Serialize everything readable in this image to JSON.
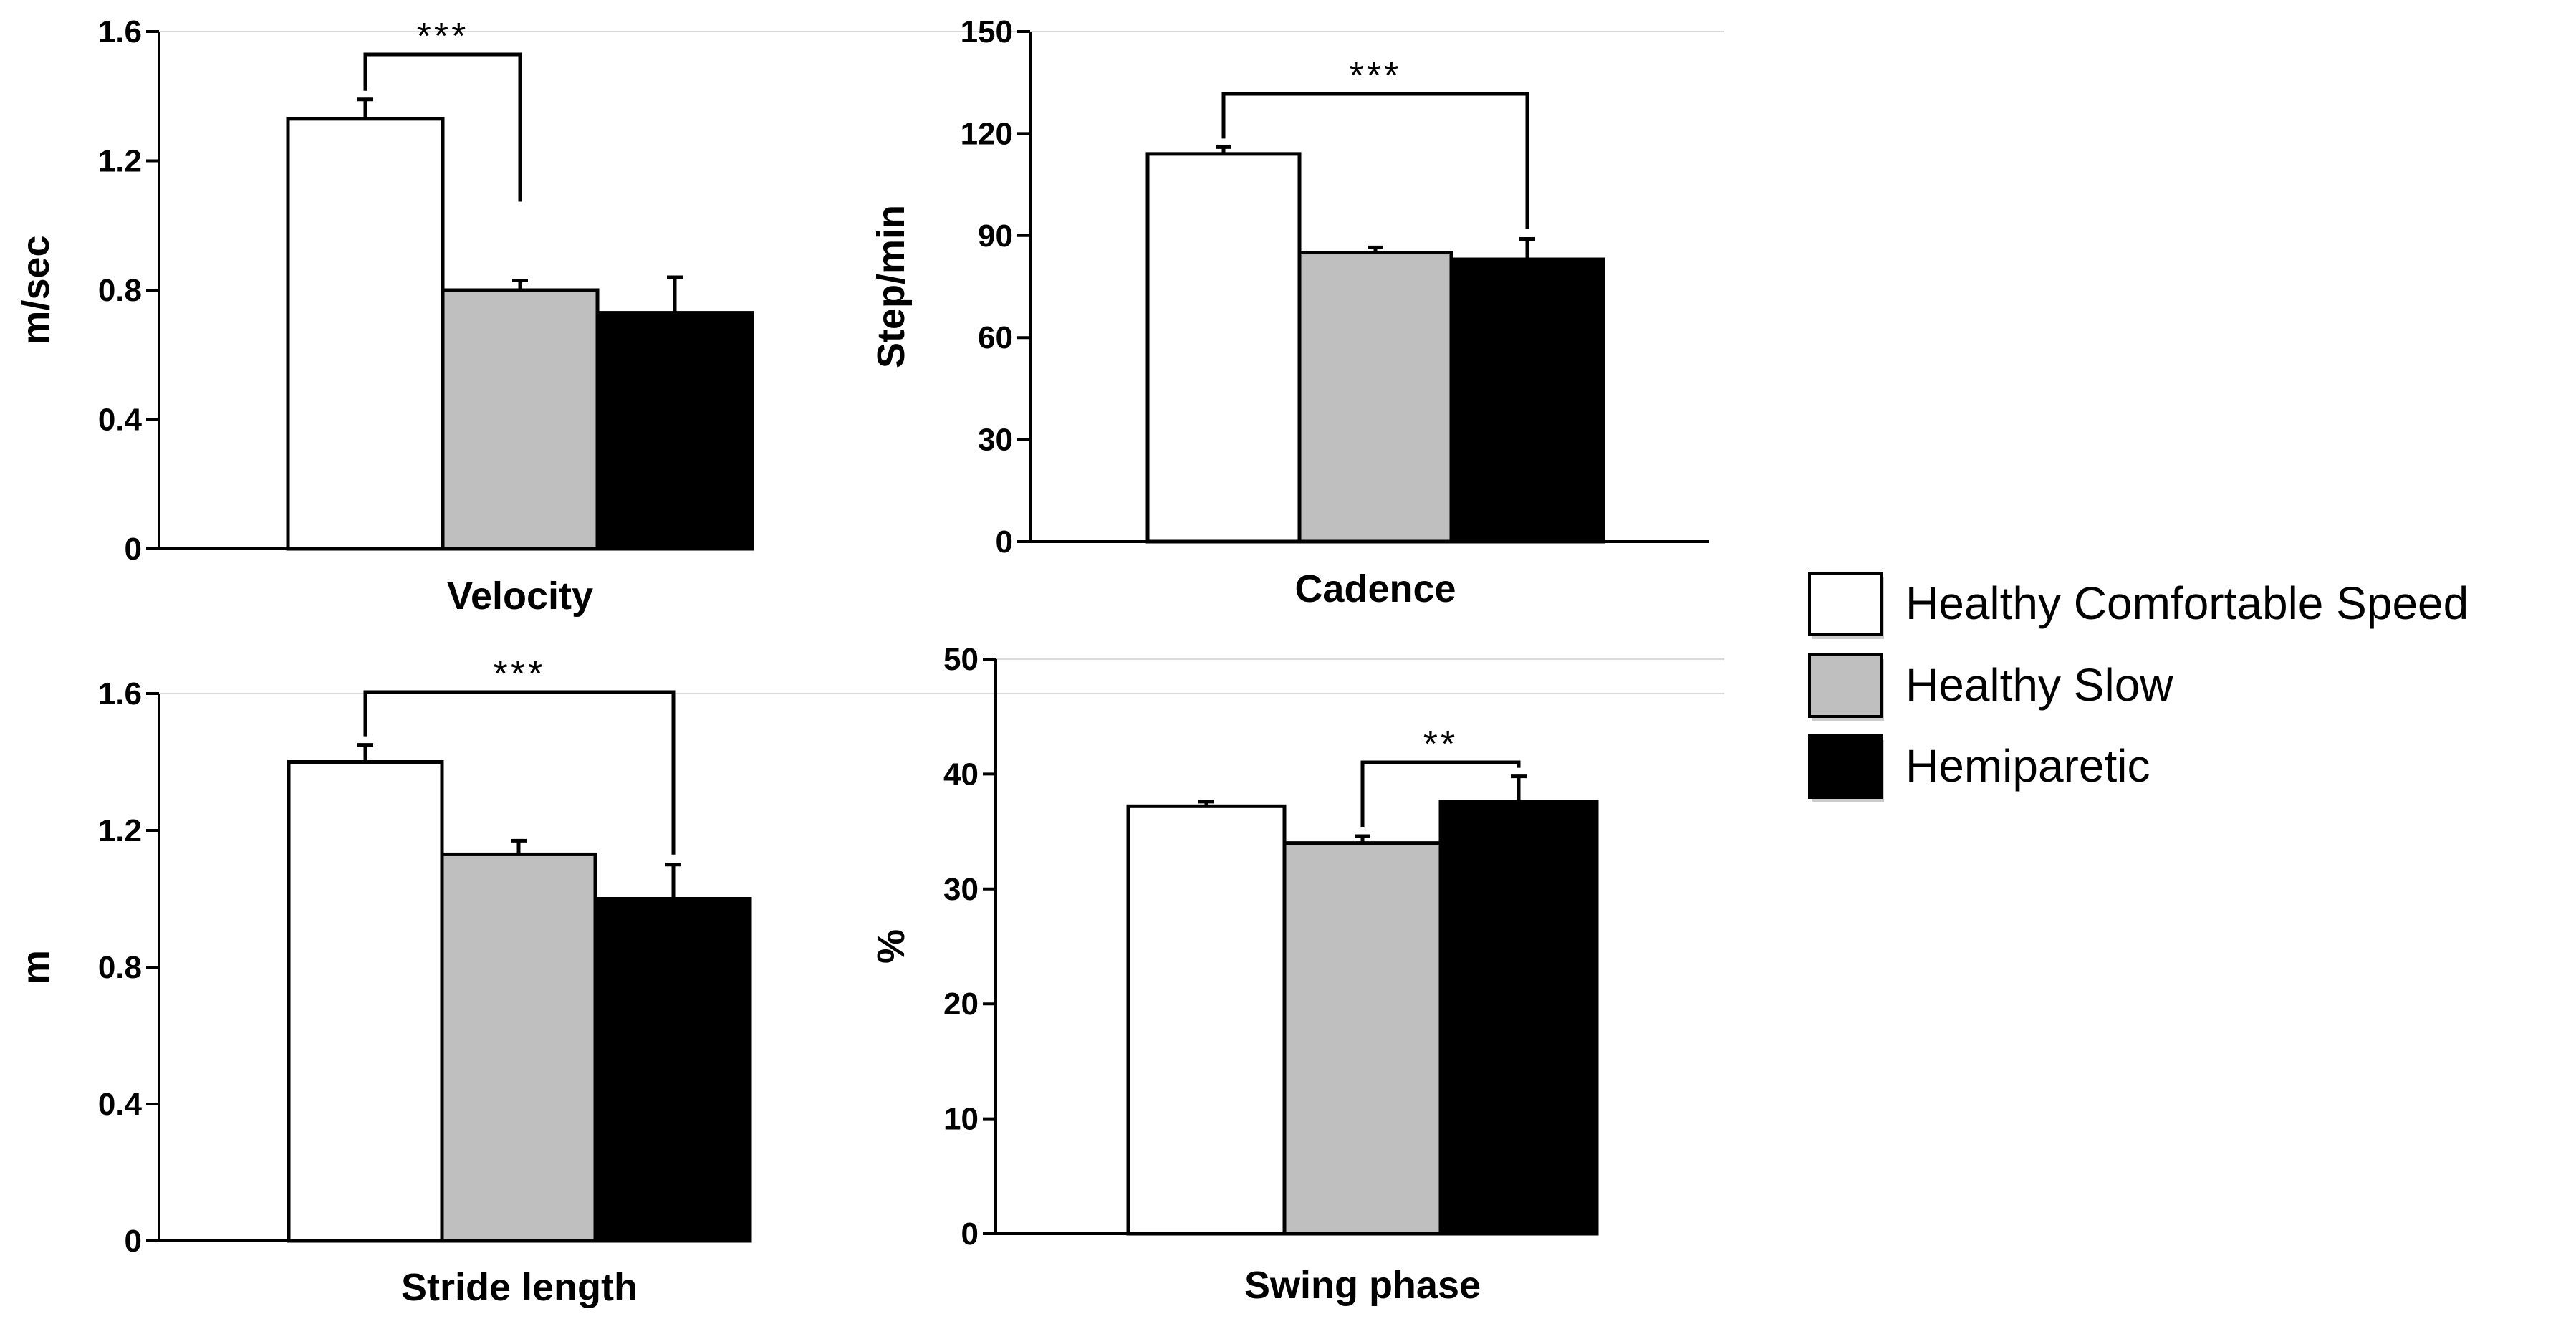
{
  "legend": {
    "items": [
      {
        "label": "Healthy Comfortable Speed",
        "color": "#ffffff"
      },
      {
        "label": "Healthy Slow",
        "color": "#bfbfbf"
      },
      {
        "label": "Hemiparetic",
        "color": "#000000"
      }
    ]
  },
  "chart_data": [
    {
      "type": "bar",
      "title": "",
      "xlabel": "Velocity",
      "ylabel": "m/sec",
      "categories": [
        "Healthy Comfortable Speed",
        "Healthy Slow",
        "Hemiparetic"
      ],
      "values": [
        1.33,
        0.8,
        0.73
      ],
      "errors": [
        0.06,
        0.03,
        0.11
      ],
      "colors": [
        "#ffffff",
        "#bfbfbf",
        "#000000"
      ],
      "ylim": [
        0,
        1.6
      ],
      "ticks": [
        0,
        0.4,
        0.8,
        1.2,
        1.6
      ],
      "tick_labels": [
        "0",
        "0.4",
        "0.8",
        "1.2",
        "1.6"
      ],
      "significance": {
        "from": 0,
        "to": 1,
        "label": "***"
      }
    },
    {
      "type": "bar",
      "title": "",
      "xlabel": "Cadence",
      "ylabel": "Step/min",
      "categories": [
        "Healthy Comfortable Speed",
        "Healthy Slow",
        "Hemiparetic"
      ],
      "values": [
        114,
        85,
        83
      ],
      "errors": [
        2,
        1.5,
        6
      ],
      "colors": [
        "#ffffff",
        "#bfbfbf",
        "#000000"
      ],
      "ylim": [
        0,
        150
      ],
      "ticks": [
        0,
        30,
        60,
        90,
        120,
        150
      ],
      "tick_labels": [
        "0",
        "30",
        "60",
        "90",
        "120",
        "150"
      ],
      "significance": {
        "from": 0,
        "to": 2,
        "label": "***"
      }
    },
    {
      "type": "bar",
      "title": "",
      "xlabel": "Stride length",
      "ylabel": "m",
      "categories": [
        "Healthy Comfortable Speed",
        "Healthy Slow",
        "Hemiparetic"
      ],
      "values": [
        1.4,
        1.13,
        1.0
      ],
      "errors": [
        0.05,
        0.04,
        0.1
      ],
      "colors": [
        "#ffffff",
        "#bfbfbf",
        "#000000"
      ],
      "ylim": [
        0,
        1.6
      ],
      "ticks": [
        0,
        0.4,
        0.8,
        1.2,
        1.6
      ],
      "tick_labels": [
        "0",
        "0.4",
        "0.8",
        "1.2",
        "1.6"
      ],
      "significance": {
        "from": 0,
        "to": 2,
        "label": "***"
      }
    },
    {
      "type": "bar",
      "title": "",
      "xlabel": "Swing phase",
      "ylabel": "%",
      "categories": [
        "Healthy Comfortable Speed",
        "Healthy Slow",
        "Hemiparetic"
      ],
      "values": [
        37.2,
        34,
        37.6
      ],
      "errors": [
        0.4,
        0.6,
        2.2
      ],
      "colors": [
        "#ffffff",
        "#bfbfbf",
        "#000000"
      ],
      "ylim": [
        0,
        50
      ],
      "ticks": [
        0,
        10,
        20,
        30,
        40,
        50
      ],
      "tick_labels": [
        "0",
        "10",
        "20",
        "30",
        "40",
        "50"
      ],
      "significance": {
        "from": 1,
        "to": 2,
        "label": "**"
      }
    }
  ]
}
